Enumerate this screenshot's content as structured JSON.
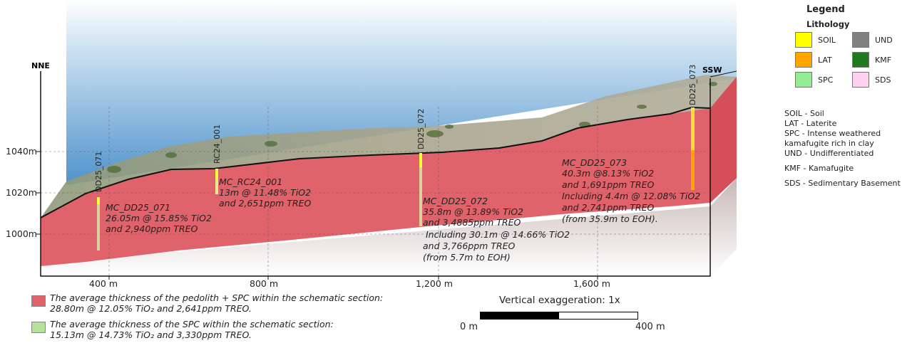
{
  "orientation": {
    "left": "NNE",
    "right": "SSW"
  },
  "elevation_labels": [
    "1040m",
    "1020m",
    "1000m"
  ],
  "distance_labels": [
    "400 m",
    "800 m",
    "1,200 m",
    "1,600 m"
  ],
  "holes": [
    {
      "id": "DD25_071",
      "label": "MC_DD25_071",
      "lines": [
        "26.05m @ 15.85% TiO2",
        "and 2,940ppm TREO"
      ]
    },
    {
      "id": "RC24_001",
      "label": "MC_RC24_001",
      "lines": [
        "13m @ 11.48% TiO2",
        "and 2,651ppm TREO"
      ]
    },
    {
      "id": "DD25_072",
      "label": "MC_DD25_072",
      "lines": [
        "35.8m @ 13.89% TiO2",
        "and 3,4885ppm TREO",
        " Including 30.1m @ 14.66% TiO2",
        "and 3,766ppm TREO",
        "(from 5.7m to EOH)"
      ]
    },
    {
      "id": "DD25_073",
      "label": "MC_DD25_073",
      "lines": [
        "40.3m @8.13% TiO2",
        "and 1,691ppm TREO",
        "Including 4.4m @ 12.08% TiO2",
        "and 2,741ppm TREO",
        "(from 35.9m to EOH)."
      ]
    }
  ],
  "legend": {
    "title": "Legend",
    "subtitle": "Lithology",
    "items": [
      {
        "code": "SOIL",
        "color": "#ffff00"
      },
      {
        "code": "UND",
        "color": "#808080"
      },
      {
        "code": "LAT",
        "color": "#ffa500"
      },
      {
        "code": "KMF",
        "color": "#1f7a1f"
      },
      {
        "code": "SPC",
        "color": "#90ee90"
      },
      {
        "code": "SDS",
        "color": "#ffd0f0"
      }
    ],
    "descriptions": [
      "SOIL - Soil",
      "LAT - Laterite",
      "SPC - Intense weathered",
      "kamafugite rich in clay",
      "UND - Undifferentiated",
      "KMF - Kamafugite",
      "SDS - Sedimentary Basement"
    ]
  },
  "notes": [
    {
      "color": "#e0626a",
      "lines": [
        "The average thickness of the pedolith + SPC within the schematic section:",
        "28.80m @ 12.05% TiO₂ and 2,641ppm TREO."
      ]
    },
    {
      "color": "#b5e29a",
      "lines": [
        "The average thickness of the SPC within the schematic section:",
        "15.13m @ 14.73% TiO₂ and 3,330ppm TREO."
      ]
    }
  ],
  "scale": {
    "title": "Vertical exaggeration: 1x",
    "start": "0 m",
    "end": "400 m"
  },
  "colors": {
    "pedolith": "#e0626a",
    "sky": "#5f9fd0",
    "terrain": "#a3a08a"
  }
}
